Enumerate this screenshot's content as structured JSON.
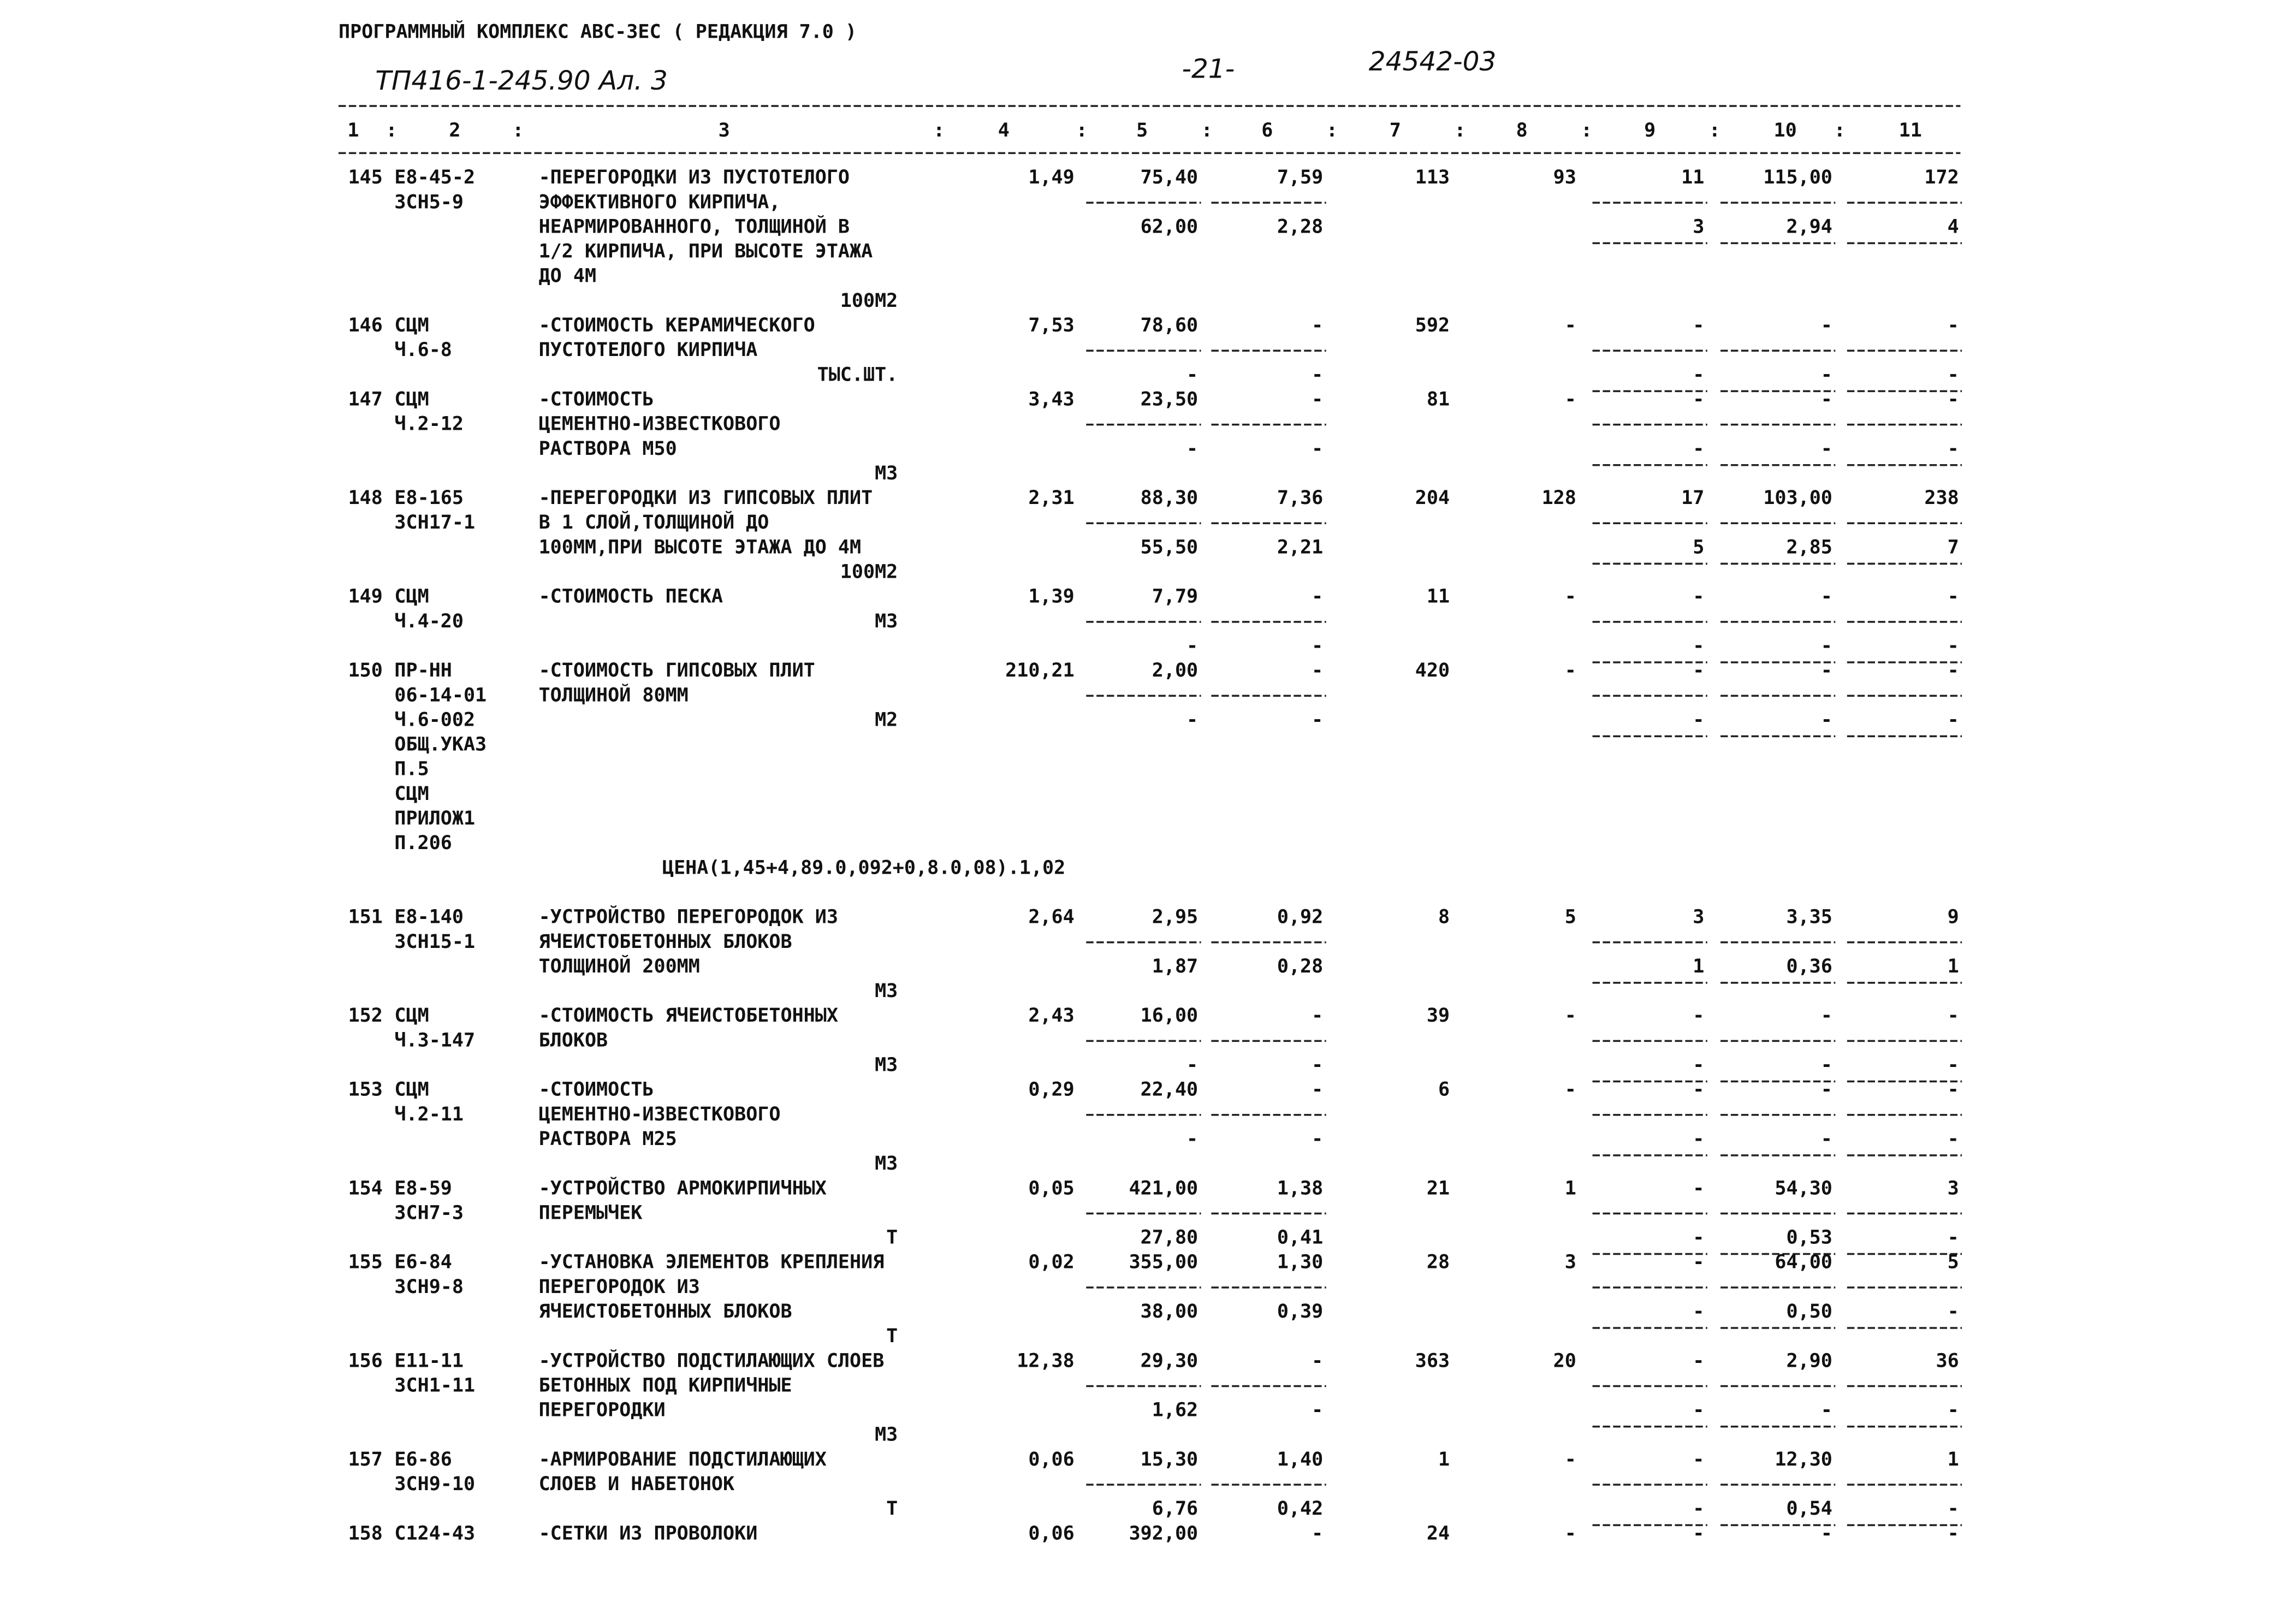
{
  "header": {
    "program": "ПРОГРАММНЫЙ КОМПЛЕКС АВС-3ЕС    ( РЕДАКЦИЯ  7.0 )",
    "project": "ТП416-1-245.90  Ал. 3",
    "page": "-21-",
    "doc_number": "24542-03"
  },
  "table": {
    "columns": [
      "1",
      "2",
      "3",
      "4",
      "5",
      "6",
      "7",
      "8",
      "9",
      "10",
      "11"
    ],
    "rows": [
      {
        "num": "145",
        "code": [
          "Е8-45-2",
          "3СН5-9"
        ],
        "desc": [
          "-ПЕРЕГОРОДКИ ИЗ ПУСТОТЕЛОГО",
          "ЭФФЕКТИВНОГО КИРПИЧА,",
          "НЕАРМИРОВАННОГО, ТОЛЩИНОЙ В",
          "1/2 КИРПИЧА, ПРИ ВЫСОТЕ ЭТАЖА",
          "ДО 4М"
        ],
        "unit": "100М2",
        "values": [
          "1,49",
          "75,40",
          "7,59",
          "113",
          "93",
          "11",
          "115,00",
          "172"
        ],
        "values2": [
          "62,00",
          "2,28",
          "3",
          "2,94",
          "4"
        ]
      },
      {
        "num": "146",
        "code": [
          "СЦМ",
          "Ч.6-8"
        ],
        "desc": [
          "-СТОИМОСТЬ КЕРАМИЧЕСКОГО",
          "ПУСТОТЕЛОГО КИРПИЧА"
        ],
        "unit": "ТЫС.ШТ.",
        "values": [
          "7,53",
          "78,60",
          "-",
          "592",
          "-",
          "-",
          "-",
          "-"
        ],
        "values2": [
          "-",
          "-",
          "-",
          "-",
          "-"
        ]
      },
      {
        "num": "147",
        "code": [
          "СЦМ",
          "Ч.2-12"
        ],
        "desc": [
          "-СТОИМОСТЬ",
          "ЦЕМЕНТНО-ИЗВЕСТКОВОГО",
          "РАСТВОРА М50"
        ],
        "unit": "М3",
        "values": [
          "3,43",
          "23,50",
          "-",
          "81",
          "-",
          "-",
          "-",
          "-"
        ],
        "values2": [
          "-",
          "-",
          "-",
          "-",
          "-"
        ]
      },
      {
        "num": "148",
        "code": [
          "Е8-165",
          "3СН17-1"
        ],
        "desc": [
          "-ПЕРЕГОРОДКИ ИЗ ГИПСОВЫХ ПЛИТ",
          "В 1 СЛОЙ,ТОЛЩИНОЙ ДО",
          "100ММ,ПРИ ВЫСОТЕ ЭТАЖА ДО 4М"
        ],
        "unit": "100М2",
        "values": [
          "2,31",
          "88,30",
          "7,36",
          "204",
          "128",
          "17",
          "103,00",
          "238"
        ],
        "values2": [
          "55,50",
          "2,21",
          "5",
          "2,85",
          "7"
        ]
      },
      {
        "num": "149",
        "code": [
          "СЦМ",
          "Ч.4-20"
        ],
        "desc": [
          "-СТОИМОСТЬ ПЕСКА"
        ],
        "unit": "М3",
        "values": [
          "1,39",
          "7,79",
          "-",
          "11",
          "-",
          "-",
          "-",
          "-"
        ],
        "values2": [
          "-",
          "-",
          "-",
          "-",
          "-"
        ]
      },
      {
        "num": "150",
        "code": [
          "ПР-НН",
          "06-14-01",
          "Ч.6-002",
          "ОБЩ.УКАЗ",
          "П.5",
          "СЦМ",
          "ПРИЛОЖ1",
          "П.206"
        ],
        "desc": [
          "-СТОИМОСТЬ ГИПСОВЫХ ПЛИТ",
          "ТОЛЩИНОЙ 80ММ"
        ],
        "unit": "М2",
        "values": [
          "210,21",
          "2,00",
          "-",
          "420",
          "-",
          "-",
          "-",
          "-"
        ],
        "values2": [
          "-",
          "-",
          "-",
          "-",
          "-"
        ],
        "note": "ЦЕНА(1,45+4,89.0,092+0,8.0,08).1,02"
      },
      {
        "num": "151",
        "code": [
          "Е8-140",
          "3СН15-1"
        ],
        "desc": [
          "-УСТРОЙСТВО ПЕРЕГОРОДОК ИЗ",
          "ЯЧЕИСТОБЕТОННЫХ БЛОКОВ",
          "ТОЛЩИНОЙ 200ММ"
        ],
        "unit": "М3",
        "values": [
          "2,64",
          "2,95",
          "0,92",
          "8",
          "5",
          "3",
          "3,35",
          "9"
        ],
        "values2": [
          "1,87",
          "0,28",
          "1",
          "0,36",
          "1"
        ]
      },
      {
        "num": "152",
        "code": [
          "СЦМ",
          "Ч.3-147"
        ],
        "desc": [
          "-СТОИМОСТЬ ЯЧЕИСТОБЕТОННЫХ",
          "БЛОКОВ"
        ],
        "unit": "М3",
        "values": [
          "2,43",
          "16,00",
          "-",
          "39",
          "-",
          "-",
          "-",
          "-"
        ],
        "values2": [
          "-",
          "-",
          "-",
          "-",
          "-"
        ]
      },
      {
        "num": "153",
        "code": [
          "СЦМ",
          "Ч.2-11"
        ],
        "desc": [
          "-СТОИМОСТЬ",
          "ЦЕМЕНТНО-ИЗВЕСТКОВОГО",
          "РАСТВОРА М25"
        ],
        "unit": "М3",
        "values": [
          "0,29",
          "22,40",
          "-",
          "6",
          "-",
          "-",
          "-",
          "-"
        ],
        "values2": [
          "-",
          "-",
          "-",
          "-",
          "-"
        ]
      },
      {
        "num": "154",
        "code": [
          "Е8-59",
          "3СН7-3"
        ],
        "desc": [
          "-УСТРОЙСТВО АРМОКИРПИЧНЫХ",
          "ПЕРЕМЫЧЕК"
        ],
        "unit": "Т",
        "values": [
          "0,05",
          "421,00",
          "1,38",
          "21",
          "1",
          "-",
          "54,30",
          "3"
        ],
        "values2": [
          "27,80",
          "0,41",
          "-",
          "0,53",
          "-"
        ]
      },
      {
        "num": "155",
        "code": [
          "Е6-84",
          "3СН9-8"
        ],
        "desc": [
          "-УСТАНОВКА ЭЛЕМЕНТОВ КРЕПЛЕНИЯ",
          "ПЕРЕГОРОДОК ИЗ",
          "ЯЧЕИСТОБЕТОННЫХ БЛОКОВ"
        ],
        "unit": "Т",
        "values": [
          "0,02",
          "355,00",
          "1,30",
          "28",
          "3",
          "-",
          "64,00",
          "5"
        ],
        "values2": [
          "38,00",
          "0,39",
          "-",
          "0,50",
          "-"
        ]
      },
      {
        "num": "156",
        "code": [
          "Е11-11",
          "3СН1-11"
        ],
        "desc": [
          "-УСТРОЙСТВО ПОДСТИЛАЮЩИХ СЛОЕВ",
          "БЕТОННЫХ ПОД КИРПИЧНЫЕ",
          "ПЕРЕГОРОДКИ"
        ],
        "unit": "М3",
        "values": [
          "12,38",
          "29,30",
          "-",
          "363",
          "20",
          "-",
          "2,90",
          "36"
        ],
        "values2": [
          "1,62",
          "-",
          "-",
          "-",
          "-"
        ]
      },
      {
        "num": "157",
        "code": [
          "Е6-86",
          "3СН9-10"
        ],
        "desc": [
          "-АРМИРОВАНИЕ ПОДСТИЛАЮЩИХ",
          "СЛОЕВ И НАБЕТОНОК"
        ],
        "unit": "Т",
        "values": [
          "0,06",
          "15,30",
          "1,40",
          "1",
          "-",
          "-",
          "12,30",
          "1"
        ],
        "values2": [
          "6,76",
          "0,42",
          "-",
          "0,54",
          "-"
        ]
      },
      {
        "num": "158",
        "code": [
          "С124-43"
        ],
        "desc": [
          "-СЕТКИ ИЗ ПРОВОЛОКИ"
        ],
        "values": [
          "0,06",
          "392,00",
          "-",
          "24",
          "-",
          "-",
          "-",
          "-"
        ]
      }
    ]
  }
}
